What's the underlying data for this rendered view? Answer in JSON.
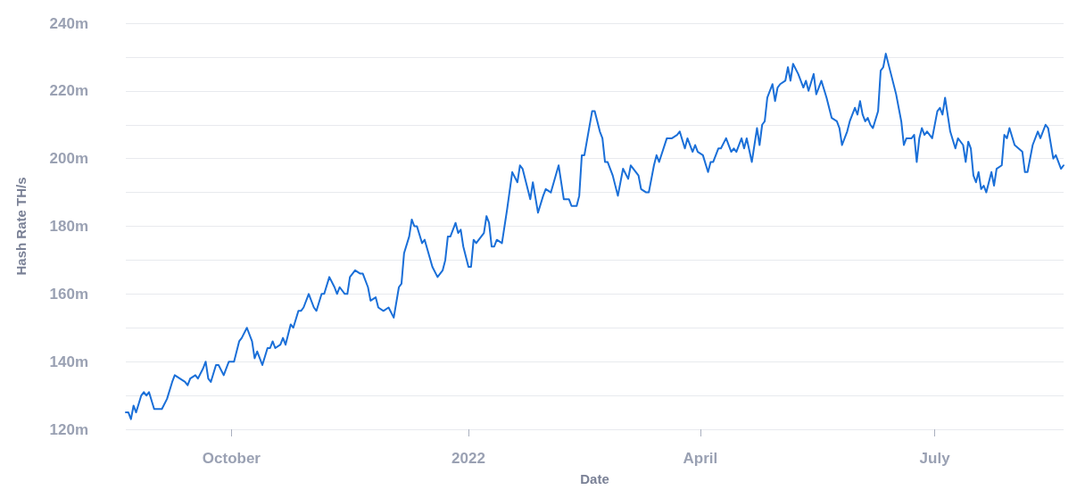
{
  "chart_data": {
    "type": "line",
    "xlabel": "Date",
    "ylabel": "Hash Rate TH/s",
    "x": [
      "2021-08-21",
      "2021-08-22",
      "2021-08-23",
      "2021-08-24",
      "2021-08-25",
      "2021-08-27",
      "2021-08-28",
      "2021-08-29",
      "2021-08-30",
      "2021-09-01",
      "2021-09-03",
      "2021-09-04",
      "2021-09-06",
      "2021-09-08",
      "2021-09-09",
      "2021-09-11",
      "2021-09-13",
      "2021-09-14",
      "2021-09-15",
      "2021-09-17",
      "2021-09-18",
      "2021-09-20",
      "2021-09-21",
      "2021-09-22",
      "2021-09-23",
      "2021-09-25",
      "2021-09-26",
      "2021-09-28",
      "2021-09-30",
      "2021-10-02",
      "2021-10-04",
      "2021-10-05",
      "2021-10-07",
      "2021-10-09",
      "2021-10-10",
      "2021-10-11",
      "2021-10-13",
      "2021-10-15",
      "2021-10-16",
      "2021-10-17",
      "2021-10-18",
      "2021-10-20",
      "2021-10-21",
      "2021-10-22",
      "2021-10-24",
      "2021-10-25",
      "2021-10-27",
      "2021-10-28",
      "2021-10-29",
      "2021-10-31",
      "2021-11-02",
      "2021-11-03",
      "2021-11-05",
      "2021-11-06",
      "2021-11-08",
      "2021-11-10",
      "2021-11-11",
      "2021-11-12",
      "2021-11-14",
      "2021-11-15",
      "2021-11-16",
      "2021-11-18",
      "2021-11-20",
      "2021-11-21",
      "2021-11-23",
      "2021-11-24",
      "2021-11-26",
      "2021-11-27",
      "2021-11-29",
      "2021-12-01",
      "2021-12-03",
      "2021-12-05",
      "2021-12-06",
      "2021-12-07",
      "2021-12-09",
      "2021-12-10",
      "2021-12-11",
      "2021-12-12",
      "2021-12-14",
      "2021-12-15",
      "2021-12-18",
      "2021-12-20",
      "2021-12-22",
      "2021-12-23",
      "2021-12-24",
      "2021-12-25",
      "2021-12-27",
      "2021-12-28",
      "2021-12-29",
      "2021-12-30",
      "2022-01-01",
      "2022-01-02",
      "2022-01-03",
      "2022-01-04",
      "2022-01-06",
      "2022-01-07",
      "2022-01-08",
      "2022-01-09",
      "2022-01-10",
      "2022-01-11",
      "2022-01-12",
      "2022-01-14",
      "2022-01-15",
      "2022-01-16",
      "2022-01-18",
      "2022-01-20",
      "2022-01-21",
      "2022-01-22",
      "2022-01-25",
      "2022-01-26",
      "2022-01-28",
      "2022-01-30",
      "2022-01-31",
      "2022-02-02",
      "2022-02-05",
      "2022-02-07",
      "2022-02-09",
      "2022-02-10",
      "2022-02-12",
      "2022-02-13",
      "2022-02-14",
      "2022-02-15",
      "2022-02-18",
      "2022-02-19",
      "2022-02-21",
      "2022-02-22",
      "2022-02-23",
      "2022-02-24",
      "2022-02-26",
      "2022-02-28",
      "2022-03-02",
      "2022-03-04",
      "2022-03-05",
      "2022-03-06",
      "2022-03-08",
      "2022-03-09",
      "2022-03-11",
      "2022-03-12",
      "2022-03-14",
      "2022-03-15",
      "2022-03-16",
      "2022-03-19",
      "2022-03-20",
      "2022-03-21",
      "2022-03-23",
      "2022-03-24",
      "2022-03-26",
      "2022-03-27",
      "2022-03-29",
      "2022-03-30",
      "2022-03-31",
      "2022-04-02",
      "2022-04-04",
      "2022-04-05",
      "2022-04-06",
      "2022-04-08",
      "2022-04-09",
      "2022-04-11",
      "2022-04-13",
      "2022-04-14",
      "2022-04-15",
      "2022-04-17",
      "2022-04-18",
      "2022-04-19",
      "2022-04-21",
      "2022-04-23",
      "2022-04-24",
      "2022-04-25",
      "2022-04-26",
      "2022-04-27",
      "2022-04-29",
      "2022-04-30",
      "2022-05-01",
      "2022-05-02",
      "2022-05-04",
      "2022-05-05",
      "2022-05-06",
      "2022-05-07",
      "2022-05-09",
      "2022-05-11",
      "2022-05-12",
      "2022-05-13",
      "2022-05-15",
      "2022-05-16",
      "2022-05-18",
      "2022-05-20",
      "2022-05-22",
      "2022-05-24",
      "2022-05-25",
      "2022-05-26",
      "2022-05-28",
      "2022-05-29",
      "2022-05-31",
      "2022-06-01",
      "2022-06-02",
      "2022-06-03",
      "2022-06-04",
      "2022-06-05",
      "2022-06-06",
      "2022-06-07",
      "2022-06-09",
      "2022-06-10",
      "2022-06-11",
      "2022-06-12",
      "2022-06-14",
      "2022-06-16",
      "2022-06-18",
      "2022-06-19",
      "2022-06-20",
      "2022-06-22",
      "2022-06-23",
      "2022-06-24",
      "2022-06-25",
      "2022-06-26",
      "2022-06-27",
      "2022-06-28",
      "2022-06-30",
      "2022-07-02",
      "2022-07-03",
      "2022-07-04",
      "2022-07-05",
      "2022-07-07",
      "2022-07-09",
      "2022-07-10",
      "2022-07-12",
      "2022-07-13",
      "2022-07-14",
      "2022-07-15",
      "2022-07-16",
      "2022-07-17",
      "2022-07-18",
      "2022-07-19",
      "2022-07-20",
      "2022-07-21",
      "2022-07-23",
      "2022-07-24",
      "2022-07-25",
      "2022-07-27",
      "2022-07-28",
      "2022-07-29",
      "2022-07-30",
      "2022-08-01",
      "2022-08-04",
      "2022-08-05",
      "2022-08-06",
      "2022-08-08",
      "2022-08-10",
      "2022-08-11",
      "2022-08-13",
      "2022-08-14",
      "2022-08-16",
      "2022-08-17",
      "2022-08-19",
      "2022-08-20"
    ],
    "series": [
      {
        "color": "#1a6fd8",
        "values": [
          125,
          125,
          123,
          127,
          125,
          130,
          131,
          130,
          131,
          126,
          126,
          126,
          129,
          134,
          136,
          135,
          134,
          133,
          135,
          136,
          135,
          138,
          140,
          135,
          134,
          139,
          139,
          136,
          140,
          140,
          146,
          147,
          150,
          146,
          141,
          143,
          139,
          144,
          144,
          146,
          144,
          145,
          147,
          145,
          151,
          150,
          155,
          155,
          156,
          160,
          156,
          155,
          160,
          160,
          165,
          162,
          160,
          162,
          160,
          160,
          165,
          167,
          166,
          166,
          162,
          158,
          159,
          156,
          155,
          156,
          153,
          162,
          163,
          172,
          177,
          182,
          180,
          180,
          175,
          176,
          168,
          165,
          167,
          170,
          177,
          177,
          181,
          178,
          179,
          174,
          168,
          168,
          176,
          175,
          177,
          178,
          183,
          181,
          174,
          174,
          176,
          175,
          180,
          185,
          196,
          193,
          198,
          197,
          188,
          193,
          184,
          189,
          191,
          190,
          198,
          188,
          188,
          186,
          186,
          189,
          201,
          201,
          214,
          214,
          208,
          206,
          199,
          199,
          195,
          189,
          197,
          194,
          198,
          197,
          195,
          191,
          190,
          190,
          198,
          201,
          199,
          206,
          206,
          206,
          207,
          208,
          203,
          206,
          202,
          204,
          202,
          201,
          196,
          199,
          199,
          203,
          203,
          206,
          202,
          203,
          202,
          206,
          203,
          206,
          199,
          209,
          204,
          210,
          211,
          218,
          222,
          217,
          221,
          222,
          223,
          227,
          223,
          228,
          225,
          221,
          223,
          220,
          225,
          219,
          223,
          218,
          212,
          211,
          209,
          204,
          208,
          211,
          215,
          213,
          217,
          213,
          211,
          212,
          210,
          209,
          214,
          226,
          227,
          231,
          225,
          219,
          211,
          204,
          206,
          206,
          207,
          199,
          206,
          209,
          207,
          208,
          206,
          214,
          215,
          213,
          218,
          208,
          203,
          206,
          204,
          199,
          205,
          203,
          195,
          193,
          196,
          191,
          192,
          190,
          196,
          192,
          197,
          198,
          207,
          206,
          209,
          204,
          202,
          196,
          196,
          204,
          208,
          206,
          210,
          209,
          200,
          201,
          197,
          198
        ]
      }
    ],
    "ylim": [
      120,
      240
    ],
    "yticks": [
      {
        "value": 120,
        "label": "120m"
      },
      {
        "value": 130,
        "label": null
      },
      {
        "value": 140,
        "label": "140m"
      },
      {
        "value": 150,
        "label": null
      },
      {
        "value": 160,
        "label": "160m"
      },
      {
        "value": 170,
        "label": null
      },
      {
        "value": 180,
        "label": "180m"
      },
      {
        "value": 190,
        "label": null
      },
      {
        "value": 200,
        "label": "200m"
      },
      {
        "value": 210,
        "label": null
      },
      {
        "value": 220,
        "label": "220m"
      },
      {
        "value": 230,
        "label": null
      },
      {
        "value": 240,
        "label": "240m"
      }
    ],
    "xlim": [
      "2021-08-21",
      "2022-08-20"
    ],
    "xticks": [
      {
        "value": "2021-10-01",
        "label": "October"
      },
      {
        "value": "2022-01-01",
        "label": "2022"
      },
      {
        "value": "2022-04-01",
        "label": "April"
      },
      {
        "value": "2022-07-01",
        "label": "July"
      }
    ],
    "grid": "y",
    "marker": "none",
    "line_style": "solid"
  }
}
